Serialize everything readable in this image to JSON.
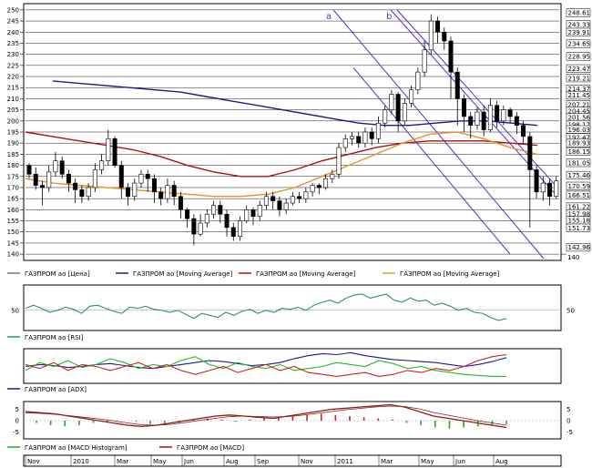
{
  "chart_data": [
    {
      "type": "candlestick",
      "title": "",
      "ylim": [
        138,
        252
      ],
      "yticks": [
        140,
        145,
        150,
        155,
        160,
        165,
        170,
        175,
        180,
        185,
        190,
        195,
        200,
        205,
        210,
        215,
        220,
        225,
        230,
        235,
        240,
        245,
        250
      ],
      "price_labels": [
        "248.61",
        "243.33",
        "239.91",
        "234.65",
        "228.95",
        "223.47",
        "219.21",
        "214.37",
        "211.45",
        "207.21",
        "204.45",
        "201.56",
        "198.17",
        "196.03",
        "192.47",
        "189.93",
        "186.15",
        "181.05",
        "175.46",
        "170.59",
        "166.51",
        "161.22",
        "157.98",
        "155.18",
        "151.73",
        "142.96"
      ],
      "candles": [
        [
          180,
          176,
          174,
          181
        ],
        [
          176,
          171,
          169,
          179
        ],
        [
          171,
          170,
          162,
          173
        ],
        [
          170,
          177,
          168,
          180
        ],
        [
          177,
          182,
          175,
          186
        ],
        [
          182,
          176,
          174,
          184
        ],
        [
          176,
          172,
          168,
          178
        ],
        [
          172,
          169,
          163,
          174
        ],
        [
          169,
          166,
          163,
          171
        ],
        [
          166,
          170,
          164,
          172
        ],
        [
          170,
          178,
          168,
          181
        ],
        [
          178,
          182,
          176,
          185
        ],
        [
          182,
          192,
          180,
          196
        ],
        [
          192,
          180,
          179,
          193
        ],
        [
          180,
          170,
          165,
          182
        ],
        [
          170,
          166,
          162,
          172
        ],
        [
          166,
          172,
          164,
          174
        ],
        [
          172,
          176,
          170,
          178
        ],
        [
          176,
          174,
          168,
          178
        ],
        [
          174,
          168,
          163,
          176
        ],
        [
          168,
          165,
          162,
          170
        ],
        [
          165,
          171,
          163,
          174
        ],
        [
          171,
          166,
          162,
          173
        ],
        [
          166,
          160,
          156,
          168
        ],
        [
          160,
          156,
          152,
          161
        ],
        [
          156,
          149,
          144,
          158
        ],
        [
          149,
          154,
          148,
          158
        ],
        [
          154,
          158,
          152,
          160
        ],
        [
          158,
          162,
          156,
          164
        ],
        [
          162,
          158,
          154,
          164
        ],
        [
          158,
          152,
          148,
          160
        ],
        [
          152,
          148,
          146,
          154
        ],
        [
          148,
          155,
          146,
          157
        ],
        [
          155,
          160,
          154,
          162
        ],
        [
          160,
          157,
          153,
          161
        ],
        [
          157,
          162,
          155,
          164
        ],
        [
          162,
          166,
          160,
          168
        ],
        [
          166,
          164,
          160,
          168
        ],
        [
          164,
          160,
          157,
          166
        ],
        [
          160,
          163,
          158,
          165
        ],
        [
          163,
          166,
          162,
          168
        ],
        [
          166,
          165,
          163,
          168
        ],
        [
          165,
          168,
          163,
          170
        ],
        [
          168,
          171,
          166,
          172
        ],
        [
          171,
          170,
          167,
          172
        ],
        [
          170,
          174,
          169,
          176
        ],
        [
          174,
          176,
          172,
          178
        ],
        [
          176,
          188,
          174,
          190
        ],
        [
          188,
          192,
          186,
          194
        ],
        [
          192,
          193,
          189,
          195
        ],
        [
          193,
          190,
          188,
          195
        ],
        [
          190,
          195,
          188,
          197
        ],
        [
          195,
          192,
          189,
          197
        ],
        [
          192,
          199,
          190,
          202
        ],
        [
          199,
          205,
          197,
          207
        ],
        [
          205,
          212,
          203,
          214
        ],
        [
          212,
          200,
          195,
          213
        ],
        [
          200,
          208,
          198,
          210
        ],
        [
          208,
          214,
          206,
          216
        ],
        [
          214,
          222,
          212,
          224
        ],
        [
          222,
          232,
          220,
          236
        ],
        [
          232,
          245,
          230,
          248
        ],
        [
          245,
          240,
          235,
          247
        ],
        [
          240,
          236,
          232,
          242
        ],
        [
          236,
          222,
          210,
          238
        ],
        [
          222,
          210,
          198,
          224
        ],
        [
          210,
          202,
          195,
          212
        ],
        [
          202,
          198,
          192,
          204
        ],
        [
          198,
          204,
          196,
          206
        ],
        [
          204,
          196,
          193,
          207
        ],
        [
          196,
          207,
          195,
          210
        ],
        [
          207,
          200,
          197,
          209
        ],
        [
          200,
          205,
          198,
          207
        ],
        [
          205,
          202,
          199,
          206
        ],
        [
          202,
          198,
          194,
          204
        ],
        [
          198,
          193,
          190,
          200
        ],
        [
          193,
          178,
          152,
          195
        ],
        [
          178,
          168,
          165,
          180
        ],
        [
          168,
          172,
          164,
          175
        ],
        [
          172,
          166,
          162,
          174
        ],
        [
          166,
          173,
          165,
          175
        ]
      ],
      "moving_averages": [
        {
          "color": "#1a1a8c",
          "values": [
            218,
            217,
            216,
            215,
            214,
            213,
            211,
            209,
            207,
            205,
            203,
            201,
            199,
            198,
            198,
            199,
            200,
            200,
            199,
            198
          ]
        },
        {
          "color": "#b01010",
          "values": [
            195,
            193,
            191,
            189,
            187,
            184,
            180,
            177,
            175,
            175,
            178,
            182,
            185,
            188,
            190,
            191,
            191,
            191,
            190,
            189
          ]
        },
        {
          "color": "#e8922a",
          "values": [
            174,
            172,
            171,
            170,
            169,
            168,
            167,
            166,
            166,
            167,
            170,
            175,
            180,
            185,
            190,
            194,
            195,
            192,
            188,
            185
          ]
        }
      ],
      "channel_labels": [
        "a",
        "b"
      ],
      "legend": [
        "ГАЗПРОМ ао [Цена]",
        "ГАЗПРОМ ао [Moving Average]",
        "ГАЗПРОМ ао [Moving Average]",
        "ГАЗПРОМ ао [Moving Average]"
      ],
      "legend_colors": [
        "#777777",
        "#1a1a8c",
        "#b01010",
        "#e8922a"
      ]
    },
    {
      "type": "line",
      "ytick_label": "50",
      "series": [
        {
          "color": "#2e8b8b",
          "values": [
            52,
            55,
            52,
            48,
            50,
            53,
            51,
            47,
            54,
            55,
            52,
            49,
            47,
            53,
            52,
            54,
            51,
            50,
            48,
            50,
            46,
            42,
            47,
            45,
            43,
            48,
            45,
            49,
            51,
            47,
            50,
            48,
            52,
            51,
            53,
            50,
            55,
            58,
            60,
            57,
            62,
            65,
            66,
            62,
            64,
            66,
            60,
            58,
            62,
            59,
            60,
            55,
            57,
            54,
            50,
            52,
            48,
            47,
            43,
            40,
            42
          ]
        }
      ],
      "legend": [
        "ГАЗПРОМ ао [RSI]"
      ]
    },
    {
      "type": "line",
      "series": [
        {
          "color": "#1a1a8c",
          "values": [
            22,
            24,
            23,
            21,
            22,
            24,
            25,
            23,
            21,
            20,
            22,
            24,
            26,
            28,
            27,
            25,
            23,
            24,
            26,
            30,
            33,
            35,
            34,
            36,
            33,
            31,
            29,
            28,
            27,
            26,
            24,
            22,
            24,
            27,
            31
          ]
        },
        {
          "color": "#22bb22",
          "values": [
            18,
            26,
            22,
            28,
            21,
            24,
            30,
            26,
            20,
            24,
            22,
            28,
            32,
            24,
            20,
            26,
            22,
            20,
            24,
            18,
            20,
            22,
            26,
            24,
            22,
            28,
            25,
            20,
            22,
            18,
            16,
            14,
            13,
            12,
            12
          ]
        },
        {
          "color": "#cc2222",
          "values": [
            24,
            20,
            26,
            18,
            24,
            22,
            18,
            22,
            26,
            20,
            24,
            18,
            14,
            18,
            22,
            16,
            20,
            24,
            18,
            22,
            16,
            14,
            12,
            14,
            16,
            12,
            14,
            18,
            16,
            20,
            18,
            22,
            28,
            32,
            34
          ]
        }
      ],
      "legend": [
        "ГАЗПРОМ ао [ADX]"
      ]
    },
    {
      "type": "bar_line",
      "ytick_labels": [
        "5",
        "0",
        "-5"
      ],
      "histogram": [
        -1,
        -2,
        -2.5,
        -2,
        -1,
        -0.5,
        0,
        -0.5,
        -1.5,
        -2,
        -1,
        0.5,
        1,
        0.5,
        -0.5,
        0.5,
        1,
        1.5,
        2,
        2.5,
        3,
        2.5,
        2,
        1.5,
        1,
        0.5,
        -1,
        -2,
        -3,
        -3.5,
        -3,
        -2.5,
        -2,
        -1.5
      ],
      "series": [
        {
          "name": "macd",
          "color": "#8b1a1a",
          "values": [
            4,
            3.5,
            3,
            2,
            1,
            0,
            -1,
            -2,
            -2.5,
            -2,
            -1,
            0,
            1,
            2,
            2.5,
            2,
            1.5,
            1,
            2,
            3,
            4,
            5,
            5.5,
            6,
            6.5,
            7,
            6,
            4,
            2,
            1,
            0,
            -1,
            -2,
            -3
          ]
        },
        {
          "name": "signal",
          "color": "#8b1a1a",
          "values": [
            3.5,
            3.2,
            2.8,
            2.2,
            1.5,
            0.8,
            0,
            -1,
            -1.8,
            -2,
            -1.6,
            -0.8,
            0.2,
            1,
            1.8,
            2,
            1.8,
            1.6,
            1.8,
            2.4,
            3.2,
            4,
            4.8,
            5.4,
            6,
            6.4,
            6.2,
            5.2,
            3.6,
            2.4,
            1.2,
            0,
            -1,
            -2
          ]
        }
      ],
      "legend": [
        "ГАЗПРОМ ао [MACD Histogram]",
        "ГАЗПРОМ ао [MACD]"
      ]
    },
    {
      "type": "time_axis",
      "xlabels": [
        "Nov",
        "2010",
        "Mar",
        "May",
        "Jun",
        "Aug",
        "Sep",
        "Nov",
        "2011",
        "Mar",
        "May",
        "Jun",
        "Aug"
      ]
    }
  ]
}
